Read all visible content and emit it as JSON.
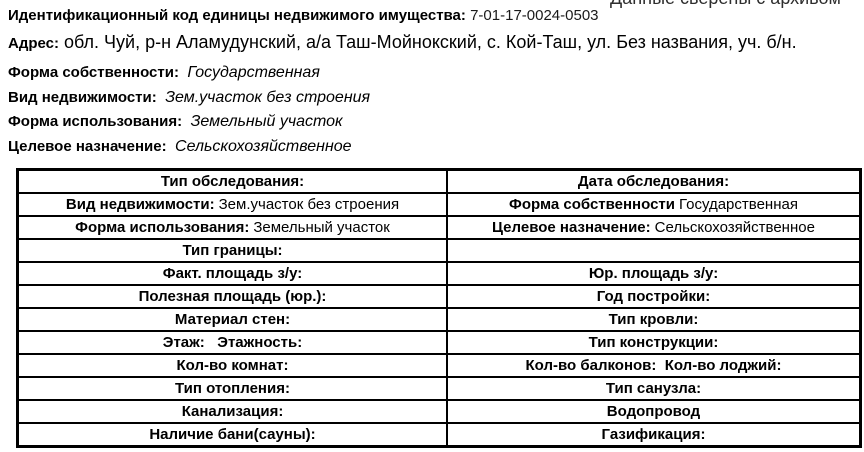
{
  "page": {
    "top_right_clipped_text": "Данные сверены с архивом"
  },
  "header": {
    "id_label": "Идентификационный код единицы недвижимого имущества:",
    "id_value": "7-01-17-0024-0503",
    "address_label": "Адрес:",
    "address_value": "обл. Чуй, р-н Аламудунский, а/а Таш-Мойнокский, с. Кой-Таш, ул. Без названия, уч. б/н.",
    "info_lines": [
      {
        "label": "Форма собственности:",
        "value": "Государственная"
      },
      {
        "label": "Вид недвижимости:",
        "value": "Зем.участок без строения"
      },
      {
        "label": "Форма использования:",
        "value": "Земельный участок"
      },
      {
        "label": "Целевое назначение:",
        "value": "Сельскохозяйственное"
      }
    ]
  },
  "table": {
    "rows": [
      {
        "left": {
          "label": "Тип обследования:",
          "value": ""
        },
        "right": {
          "label": "Дата обследования:",
          "value": ""
        }
      },
      {
        "left": {
          "label": "Вид недвижимости:",
          "value": "Зем.участок без строения"
        },
        "right": {
          "label": "Форма собственности",
          "value": "Государственная"
        }
      },
      {
        "left": {
          "label": "Форма использования:",
          "value": "Земельный участок"
        },
        "right": {
          "label": "Целевое назначение:",
          "value": "Сельскохозяйственное"
        }
      },
      {
        "left": {
          "label": "Тип границы:",
          "value": ""
        },
        "right": {
          "label": "",
          "value": ""
        }
      },
      {
        "left": {
          "label": "Факт. площадь з/у:",
          "value": ""
        },
        "right": {
          "label": "Юр. площадь з/у:",
          "value": ""
        }
      },
      {
        "left": {
          "label": "Полезная площадь (юр.):",
          "value": ""
        },
        "right": {
          "label": "Год постройки:",
          "value": ""
        }
      },
      {
        "left": {
          "label": "Материал стен:",
          "value": ""
        },
        "right": {
          "label": "Тип кровли:",
          "value": ""
        }
      },
      {
        "left": {
          "label": "Этаж:   Этажность:",
          "value": ""
        },
        "right": {
          "label": "Тип конструкции:",
          "value": ""
        }
      },
      {
        "left": {
          "label": "Кол-во комнат:",
          "value": ""
        },
        "right": {
          "label": "Кол-во балконов:  Кол-во лоджий:",
          "value": ""
        }
      },
      {
        "left": {
          "label": "Тип отопления:",
          "value": ""
        },
        "right": {
          "label": "Тип санузла:",
          "value": ""
        }
      },
      {
        "left": {
          "label": "Канализация:",
          "value": ""
        },
        "right": {
          "label": "Водопровод",
          "value": ""
        }
      },
      {
        "left": {
          "label": "Наличие бани(сауны):",
          "value": ""
        },
        "right": {
          "label": "Газификация:",
          "value": ""
        }
      }
    ]
  }
}
